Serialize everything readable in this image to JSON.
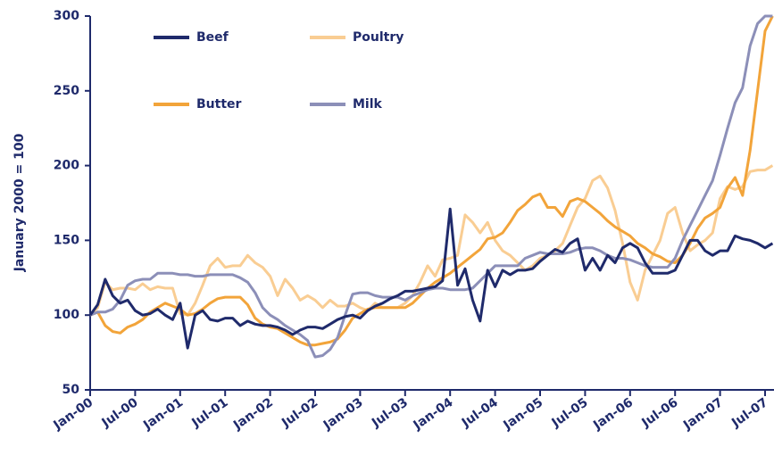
{
  "chart_data": {
    "type": "line",
    "ylabel": "January 2000 = 100",
    "categories": [
      "Jan-00",
      null,
      null,
      null,
      null,
      null,
      "Jul-00",
      null,
      null,
      null,
      null,
      null,
      "Jan-01",
      null,
      null,
      null,
      null,
      null,
      "Jul-01",
      null,
      null,
      null,
      null,
      null,
      "Jan-02",
      null,
      null,
      null,
      null,
      null,
      "Jul-02",
      null,
      null,
      null,
      null,
      null,
      "Jan-03",
      null,
      null,
      null,
      null,
      null,
      "Jul-03",
      null,
      null,
      null,
      null,
      null,
      "Jan-04",
      null,
      null,
      null,
      null,
      null,
      "Jul-04",
      null,
      null,
      null,
      null,
      null,
      "Jan-05",
      null,
      null,
      null,
      null,
      null,
      "Jul-05",
      null,
      null,
      null,
      null,
      null,
      "Jan-06",
      null,
      null,
      null,
      null,
      null,
      "Jul-06",
      null,
      null,
      null,
      null,
      null,
      "Jan-07",
      null,
      null,
      null,
      null,
      null,
      "Jul-07",
      null
    ],
    "series": [
      {
        "name": "Beef",
        "color": "#1f2a6b",
        "values": [
          100,
          107,
          124,
          113,
          108,
          110,
          103,
          100,
          101,
          104,
          100,
          97,
          108,
          78,
          100,
          103,
          97,
          96,
          98,
          98,
          93,
          96,
          94,
          93,
          93,
          92,
          90,
          87,
          90,
          92,
          92,
          91,
          94,
          97,
          99,
          100,
          98,
          103,
          106,
          108,
          111,
          113,
          116,
          116,
          117,
          118,
          119,
          123,
          171,
          120,
          131,
          110,
          96,
          130,
          119,
          130,
          127,
          130,
          130,
          131,
          136,
          140,
          144,
          142,
          148,
          151,
          130,
          138,
          130,
          140,
          135,
          145,
          148,
          145,
          135,
          128,
          128,
          128,
          130,
          140,
          150,
          150,
          143,
          140,
          143,
          143,
          153,
          151,
          150,
          148,
          145,
          148
        ]
      },
      {
        "name": "Poultry",
        "color": "#f9cd93",
        "values": [
          100,
          105,
          122,
          117,
          118,
          118,
          117,
          121,
          117,
          119,
          118,
          118,
          101,
          100,
          108,
          120,
          133,
          138,
          132,
          133,
          133,
          140,
          135,
          132,
          126,
          113,
          124,
          118,
          110,
          113,
          110,
          105,
          110,
          106,
          106,
          108,
          105,
          103,
          108,
          105,
          105,
          105,
          108,
          113,
          122,
          133,
          126,
          137,
          138,
          140,
          167,
          162,
          155,
          162,
          150,
          143,
          140,
          135,
          130,
          133,
          138,
          140,
          143,
          148,
          160,
          172,
          178,
          190,
          193,
          185,
          170,
          148,
          122,
          110,
          130,
          140,
          150,
          168,
          172,
          155,
          143,
          147,
          150,
          155,
          178,
          186,
          184,
          186,
          196,
          197,
          197,
          200
        ]
      },
      {
        "name": "Butter",
        "color": "#f2a43a",
        "values": [
          100,
          102,
          93,
          89,
          88,
          92,
          94,
          97,
          102,
          105,
          108,
          106,
          104,
          100,
          101,
          104,
          108,
          111,
          112,
          112,
          112,
          107,
          98,
          94,
          92,
          91,
          88,
          85,
          82,
          80,
          80,
          81,
          82,
          84,
          90,
          98,
          101,
          104,
          105,
          105,
          105,
          105,
          105,
          108,
          113,
          118,
          122,
          125,
          128,
          132,
          136,
          140,
          144,
          151,
          152,
          155,
          162,
          170,
          174,
          179,
          181,
          172,
          172,
          166,
          176,
          178,
          176,
          172,
          168,
          163,
          159,
          156,
          153,
          148,
          145,
          141,
          139,
          136,
          135,
          140,
          148,
          158,
          165,
          168,
          172,
          185,
          192,
          180,
          210,
          250,
          290,
          300
        ]
      },
      {
        "name": "Milk",
        "color": "#8c8fb8",
        "values": [
          100,
          102,
          102,
          104,
          110,
          120,
          123,
          124,
          124,
          128,
          128,
          128,
          127,
          127,
          126,
          126,
          127,
          127,
          127,
          127,
          125,
          122,
          115,
          105,
          100,
          97,
          93,
          90,
          87,
          83,
          72,
          73,
          77,
          85,
          100,
          114,
          115,
          115,
          113,
          112,
          112,
          112,
          110,
          113,
          115,
          117,
          118,
          118,
          117,
          117,
          117,
          118,
          123,
          128,
          133,
          133,
          133,
          133,
          138,
          140,
          142,
          141,
          141,
          141,
          142,
          144,
          145,
          145,
          143,
          140,
          138,
          138,
          137,
          135,
          133,
          132,
          132,
          132,
          138,
          150,
          160,
          170,
          180,
          190,
          207,
          225,
          242,
          252,
          280,
          295,
          300,
          300
        ]
      }
    ],
    "ylim": [
      50,
      300
    ],
    "yticks": [
      50,
      100,
      150,
      200,
      250,
      300
    ],
    "legend": "upper left"
  }
}
